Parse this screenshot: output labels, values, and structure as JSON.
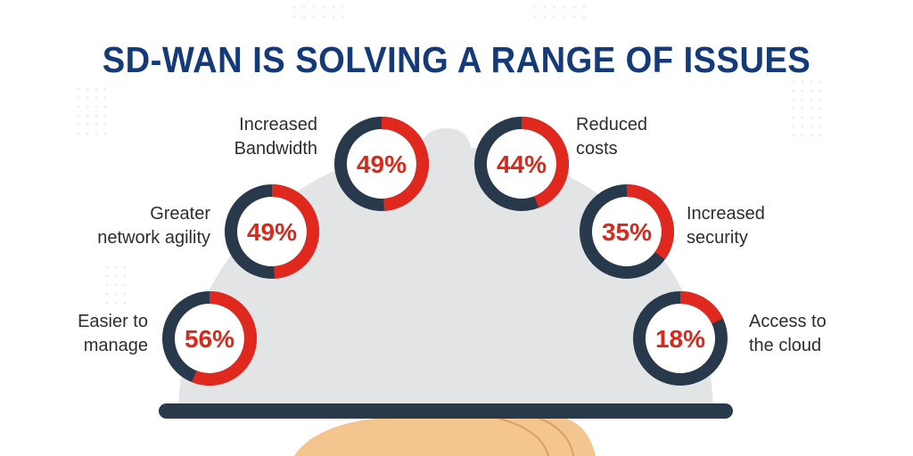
{
  "title": "SD-WAN IS SOLVING A RANGE OF ISSUES",
  "colors": {
    "title": "#143a7a",
    "ring_fill": "#e0281e",
    "ring_track": "#27394a",
    "value_text": "#d9281c",
    "dome": "#e3e4e6",
    "tray": "#27394a",
    "hand": "#f4c58f",
    "dots": "#eef0f3"
  },
  "icons": [
    "serving-dome-illustration",
    "hand-illustration"
  ],
  "chart_data": {
    "type": "pie",
    "subtype": "donut-rings",
    "title": "SD-WAN IS SOLVING A RANGE OF ISSUES",
    "unit": "%",
    "items": [
      {
        "label_lines": [
          "Easier to",
          "manage"
        ],
        "value": 56,
        "display": "56%"
      },
      {
        "label_lines": [
          "Greater",
          "network agility"
        ],
        "value": 49,
        "display": "49%"
      },
      {
        "label_lines": [
          "Increased",
          "Bandwidth"
        ],
        "value": 49,
        "display": "49%"
      },
      {
        "label_lines": [
          "Reduced",
          "costs"
        ],
        "value": 44,
        "display": "44%"
      },
      {
        "label_lines": [
          "Increased",
          "security"
        ],
        "value": 35,
        "display": "35%"
      },
      {
        "label_lines": [
          "Access to",
          "the cloud"
        ],
        "value": 18,
        "display": "18%"
      }
    ]
  }
}
